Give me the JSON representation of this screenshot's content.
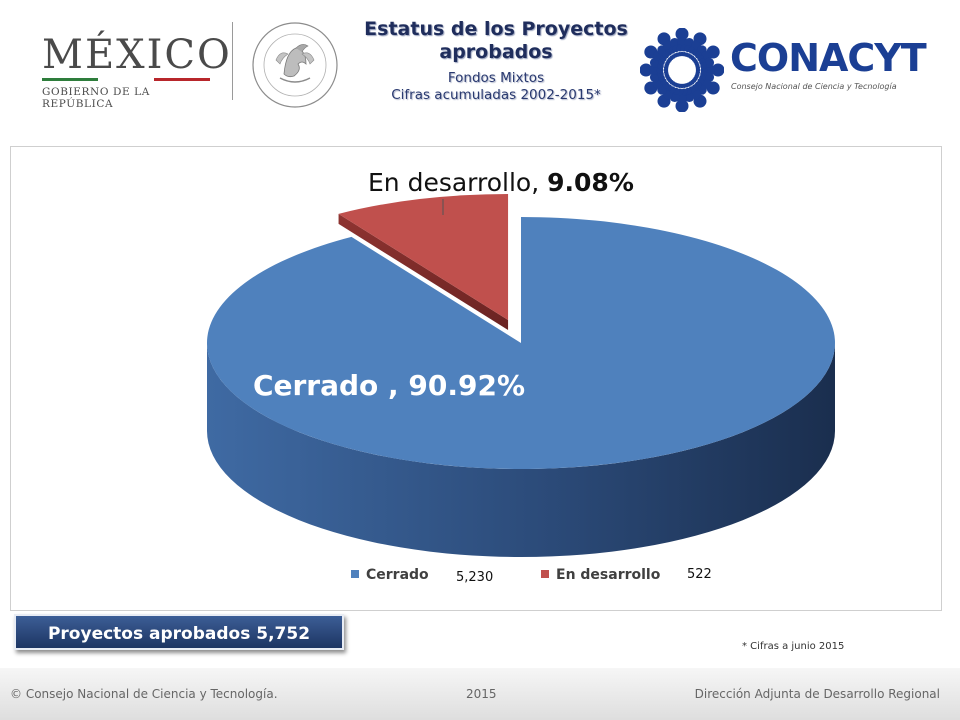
{
  "header": {
    "mexico_wordmark": "MÉXICO",
    "mexico_subtitle": "GOBIERNO DE LA REPÚBLICA",
    "title_line1": "Estatus de los Proyectos",
    "title_line2": "aprobados",
    "subtitle_line1": "Fondos  Mixtos",
    "subtitle_line2": "Cifras acumuladas 2002-2015*",
    "conacyt_wordmark": "CONACYT",
    "conacyt_subtitle": "Consejo Nacional de Ciencia y Tecnología",
    "seal_text": "ESTADOS UNIDOS MEXICANOS"
  },
  "chart_data": {
    "type": "pie",
    "style": "3d-exploded",
    "slices": [
      {
        "label": "Cerrado",
        "value": 5230,
        "percent": 90.92,
        "value_label": "5,230",
        "data_label": "Cerrado , 90.92%",
        "color": "#4f81bd"
      },
      {
        "label": "En desarrollo",
        "value": 522,
        "percent": 9.08,
        "value_label": "522",
        "data_label": "En desarrollo, ",
        "data_label_pct": "9.08%",
        "color": "#c0504d"
      }
    ],
    "legend_position": "bottom"
  },
  "badge": {
    "text": "Proyectos aprobados 5,752"
  },
  "footnote": "* Cifras a junio 2015",
  "footer": {
    "left": "© Consejo Nacional de Ciencia y Tecnología.",
    "center": "2015",
    "right": "Dirección Adjunta de Desarrollo Regional"
  },
  "colors": {
    "title": "#1f2d5c",
    "cerrado": "#4f81bd",
    "en_desarrollo": "#c0504d",
    "flag_green": "#2e7d3c",
    "flag_red": "#b8262b",
    "conacyt_blue": "#1b3f94"
  }
}
